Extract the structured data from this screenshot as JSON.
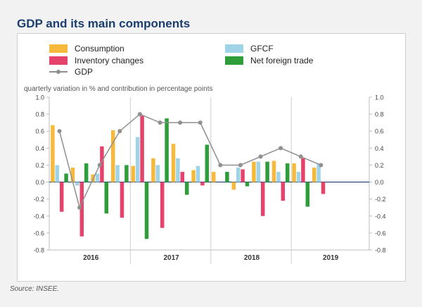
{
  "title": "GDP and its main components",
  "source": "Source: INSEE.",
  "colors": {
    "consumption": "#f6b93b",
    "gfcf": "#9fd3e8",
    "inventory": "#e6436c",
    "trade": "#2f9e3a",
    "gdp": "#8f8f8f",
    "title": "#1a3e6f"
  },
  "chart_data": {
    "type": "bar",
    "ylabel": "quarterly variation in % and contribution in percentage points",
    "ylim": [
      -0.8,
      1.0
    ],
    "yticks": [
      "1.0",
      "0.8",
      "0.6",
      "0.4",
      "0.2",
      "0.0",
      "-0.2",
      "-0.4",
      "-0.6",
      "-0.8"
    ],
    "yticks_right": [
      "1.0",
      "0.8",
      "0.6",
      "0.4",
      "0.2",
      "0.0",
      "-0.2",
      "-0.4",
      "-0.6",
      "-0.8"
    ],
    "years": [
      "2016",
      "2017",
      "2018",
      "2019"
    ],
    "legend_position": "top",
    "grid": false,
    "categories": [
      "2016 Q1",
      "2016 Q2",
      "2016 Q3",
      "2016 Q4",
      "2017 Q1",
      "2017 Q2",
      "2017 Q3",
      "2017 Q4",
      "2018 Q1",
      "2018 Q2",
      "2018 Q3",
      "2018 Q4",
      "2019 Q1",
      "2019 Q2"
    ],
    "series": [
      {
        "name": "Consumption",
        "key": "consumption",
        "type": "bar",
        "values": [
          0.67,
          0.17,
          0.09,
          0.61,
          0.19,
          0.28,
          0.45,
          0.14,
          0.12,
          -0.09,
          0.24,
          0.25,
          0.22,
          0.17
        ]
      },
      {
        "name": "GFCF",
        "key": "gfcf",
        "type": "bar",
        "values": [
          0.2,
          -0.04,
          0.1,
          0.2,
          0.53,
          0.2,
          0.28,
          0.19,
          0.0,
          0.17,
          0.24,
          0.12,
          0.12,
          0.21
        ]
      },
      {
        "name": "Inventory changes",
        "key": "inventory",
        "type": "bar",
        "values": [
          -0.35,
          -0.64,
          0.42,
          -0.42,
          0.78,
          -0.54,
          0.12,
          -0.04,
          0.0,
          0.15,
          -0.4,
          -0.22,
          0.28,
          -0.14
        ]
      },
      {
        "name": "Net foreign trade",
        "key": "trade",
        "type": "bar",
        "values": [
          0.1,
          0.22,
          -0.37,
          0.2,
          -0.67,
          0.75,
          -0.15,
          0.44,
          0.12,
          -0.05,
          0.24,
          0.22,
          -0.29,
          0.0
        ]
      },
      {
        "name": "GDP",
        "key": "gdp",
        "type": "line",
        "values": [
          0.6,
          -0.3,
          0.2,
          0.6,
          0.8,
          0.7,
          0.7,
          0.7,
          0.2,
          0.2,
          0.3,
          0.4,
          0.3,
          0.2
        ]
      }
    ]
  }
}
